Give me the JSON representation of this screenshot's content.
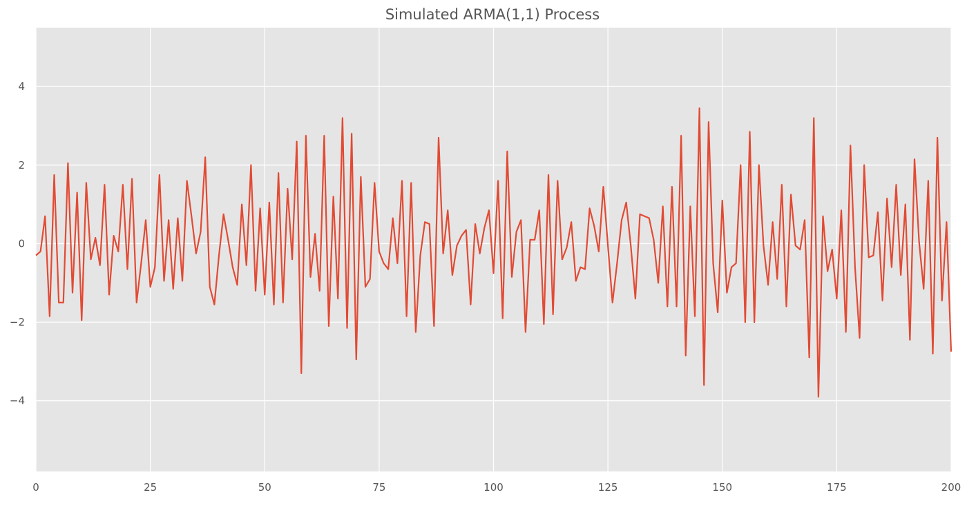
{
  "chart_data": {
    "type": "line",
    "title": "Simulated ARMA(1,1) Process",
    "xlabel": "",
    "ylabel": "",
    "xlim": [
      0,
      200
    ],
    "ylim": [
      -5.8,
      5.5
    ],
    "grid": true,
    "x_ticks": [
      0,
      25,
      50,
      75,
      100,
      125,
      150,
      175,
      200
    ],
    "x_tick_labels": [
      "0",
      "25",
      "50",
      "75",
      "100",
      "125",
      "150",
      "175",
      "200"
    ],
    "y_ticks": [
      -4,
      -2,
      0,
      2,
      4
    ],
    "y_tick_labels": [
      "−4",
      "−2",
      "0",
      "2",
      "4"
    ],
    "series": [
      {
        "color": "#e24a33",
        "values": [
          -0.3,
          -0.2,
          0.7,
          -1.85,
          1.75,
          -1.5,
          -1.5,
          2.05,
          -1.25,
          1.3,
          -1.95,
          1.55,
          -0.4,
          0.15,
          -0.55,
          1.5,
          -1.3,
          0.2,
          -0.2,
          1.5,
          -0.65,
          1.65,
          -1.5,
          -0.5,
          0.6,
          -1.1,
          -0.6,
          1.75,
          -0.95,
          0.6,
          -1.15,
          0.65,
          -0.95,
          1.6,
          0.7,
          -0.25,
          0.3,
          2.2,
          -1.1,
          -1.55,
          -0.3,
          0.75,
          0.1,
          -0.6,
          -1.05,
          1.0,
          -0.55,
          2.0,
          -1.2,
          0.9,
          -1.3,
          1.05,
          -1.55,
          1.8,
          -1.5,
          1.4,
          -0.4,
          2.6,
          -3.3,
          2.75,
          -0.85,
          0.25,
          -1.2,
          2.75,
          -2.1,
          1.2,
          -1.4,
          3.2,
          -2.15,
          2.8,
          -2.95,
          1.7,
          -1.1,
          -0.9,
          1.55,
          -0.2,
          -0.5,
          -0.65,
          0.65,
          -0.5,
          1.6,
          -1.85,
          1.55,
          -2.25,
          -0.3,
          0.55,
          0.5,
          -2.1,
          2.7,
          -0.25,
          0.85,
          -0.8,
          -0.05,
          0.2,
          0.35,
          -1.55,
          0.5,
          -0.25,
          0.4,
          0.85,
          -0.75,
          1.6,
          -1.9,
          2.35,
          -0.85,
          0.3,
          0.6,
          -2.25,
          0.1,
          0.1,
          0.85,
          -2.05,
          1.75,
          -1.8,
          1.6,
          -0.4,
          -0.1,
          0.55,
          -0.95,
          -0.6,
          -0.65,
          0.9,
          0.45,
          -0.2,
          1.45,
          -0.05,
          -1.5,
          -0.5,
          0.6,
          1.05,
          -0.05,
          -1.4,
          0.75,
          0.7,
          0.65,
          0.1,
          -1.0,
          0.95,
          -1.6,
          1.45,
          -1.6,
          2.75,
          -2.85,
          0.95,
          -1.85,
          3.45,
          -3.6,
          3.1,
          -0.5,
          -1.75,
          1.1,
          -1.25,
          -0.6,
          -0.5,
          2.0,
          -2.0,
          2.85,
          -2.0,
          2.0,
          -0.05,
          -1.05,
          0.55,
          -0.9,
          1.5,
          -1.6,
          1.25,
          -0.05,
          -0.15,
          0.6,
          -2.9,
          3.2,
          -3.9,
          0.7,
          -0.7,
          -0.15,
          -1.4,
          0.85,
          -2.25,
          2.5,
          -0.6,
          -2.4,
          2.0,
          -0.35,
          -0.3,
          0.8,
          -1.45,
          1.15,
          -0.6,
          1.5,
          -0.8,
          1.0,
          -2.45,
          2.15,
          0.05,
          -1.15,
          1.6,
          -2.8,
          2.7,
          -1.45,
          0.55,
          -2.75
        ]
      }
    ]
  }
}
